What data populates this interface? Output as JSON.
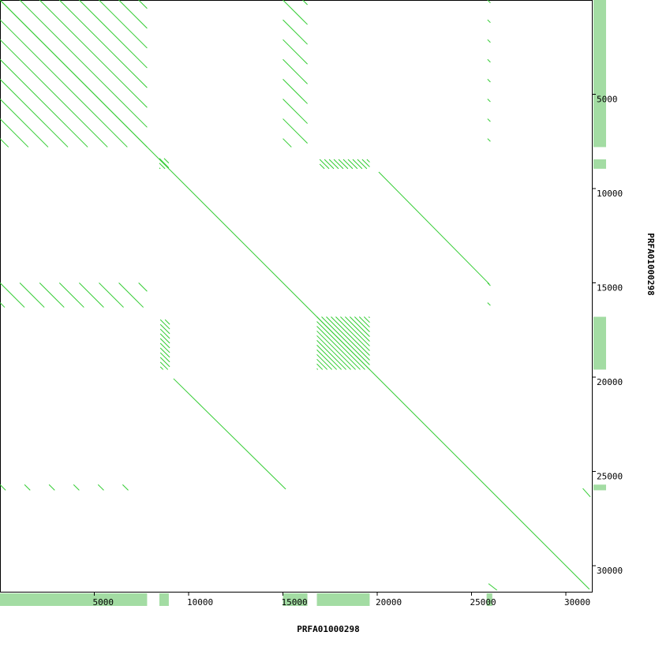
{
  "chart_data": {
    "type": "dotplot",
    "x_label": "PRFA01000298",
    "y_label": "PRFA01000298",
    "xlim": [
      0,
      31380
    ],
    "ylim": [
      0,
      31380
    ],
    "xticks": [
      5000,
      10000,
      15000,
      20000,
      25000,
      30000
    ],
    "yticks": [
      5000,
      10000,
      15000,
      20000,
      25000,
      30000
    ],
    "color": "#33cc33",
    "coverage_color": "#a3dca3",
    "segments": [
      [
        0,
        0,
        31250,
        31250
      ],
      [
        20080,
        9120,
        25940,
        15060
      ],
      [
        9200,
        20080,
        15150,
        25940
      ],
      [
        25900,
        30950,
        26350,
        31300
      ],
      [
        30900,
        25900,
        31300,
        26350
      ]
    ],
    "repeat_blocks": [
      {
        "x": [
          0,
          7800
        ],
        "y": [
          0,
          7800
        ],
        "period": 1050
      },
      {
        "x": [
          15000,
          16300
        ],
        "y": [
          0,
          7800
        ],
        "period": 1050
      },
      {
        "x": [
          0,
          7800
        ],
        "y": [
          15000,
          16300
        ],
        "period": 1050
      },
      {
        "x": [
          16800,
          19600
        ],
        "y": [
          16800,
          19600
        ],
        "period": 250
      },
      {
        "x": [
          8500,
          9000
        ],
        "y": [
          16950,
          19600
        ],
        "period": 250
      },
      {
        "x": [
          16950,
          19600
        ],
        "y": [
          8450,
          8950
        ],
        "period": 250
      },
      {
        "x": [
          8450,
          8950
        ],
        "y": [
          8400,
          8950
        ],
        "period": 250
      },
      {
        "x": [
          0,
          7800
        ],
        "y": [
          25700,
          26000
        ],
        "period": 1300
      },
      {
        "x": [
          25850,
          26000
        ],
        "y": [
          0,
          7800
        ],
        "period": 1050
      },
      {
        "x": [
          25850,
          26000
        ],
        "y": [
          15000,
          16300
        ],
        "period": 1050
      }
    ],
    "x_coverage": [
      [
        0,
        7800
      ],
      [
        8450,
        8950
      ],
      [
        15000,
        16300
      ],
      [
        16800,
        19600
      ],
      [
        25800,
        26100
      ]
    ],
    "y_coverage": [
      [
        0,
        7800
      ],
      [
        8450,
        8950
      ],
      [
        16800,
        19600
      ],
      [
        25700,
        26000
      ]
    ]
  }
}
